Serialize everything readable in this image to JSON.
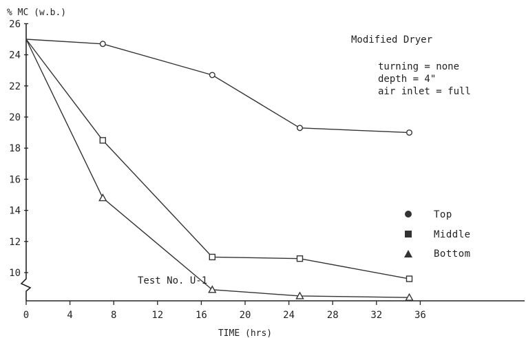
{
  "chart_data": {
    "type": "line",
    "title": "",
    "ylabel": "% MC (w.b.)",
    "xlabel": "TIME (hrs)",
    "xlim": [
      0,
      40
    ],
    "ylim": [
      8.5,
      26
    ],
    "y_axis_broken": true,
    "x_ticks": [
      0,
      4,
      8,
      12,
      16,
      20,
      24,
      28,
      32,
      36
    ],
    "y_ticks": [
      10,
      12,
      14,
      16,
      18,
      20,
      22,
      24,
      26
    ],
    "grid": false,
    "legend_position": "right",
    "series": [
      {
        "name": "Top",
        "marker": "circle",
        "x": [
          0,
          7,
          17,
          25,
          35
        ],
        "y": [
          25.0,
          24.7,
          22.7,
          19.3,
          19.0
        ]
      },
      {
        "name": "Middle",
        "marker": "square",
        "x": [
          0,
          7,
          17,
          25,
          35
        ],
        "y": [
          25.0,
          18.5,
          11.0,
          10.9,
          9.6
        ]
      },
      {
        "name": "Bottom",
        "marker": "triangle",
        "x": [
          0,
          7,
          17,
          25,
          35
        ],
        "y": [
          25.0,
          14.8,
          8.9,
          8.5,
          8.4
        ]
      }
    ]
  },
  "annotations": {
    "dryer_title": "Modified Dryer",
    "conditions": [
      "turning = none",
      "depth = 4\"",
      "air inlet = full"
    ],
    "test_label": "Test No. U-1"
  }
}
